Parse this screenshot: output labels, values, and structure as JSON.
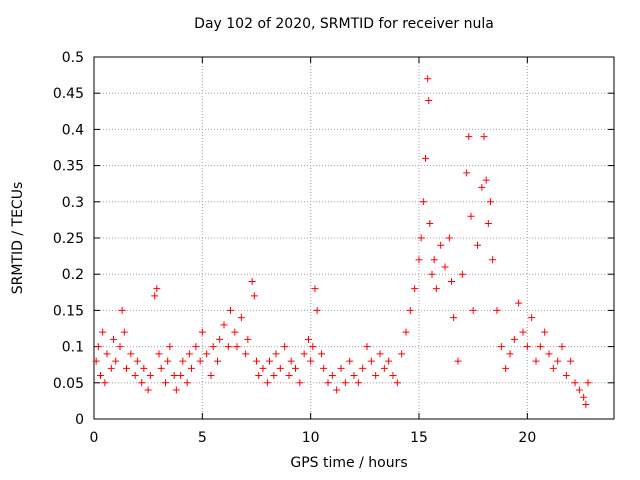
{
  "chart_data": {
    "type": "scatter",
    "title": "Day 102 of 2020, SRMTID for receiver nula",
    "xlabel": "GPS time / hours",
    "ylabel": "SRMTID / TECUs",
    "xlim": [
      0,
      24
    ],
    "ylim": [
      0,
      0.5
    ],
    "xticks": [
      0,
      5,
      10,
      15,
      20
    ],
    "yticks": [
      0,
      0.05,
      0.1,
      0.15,
      0.2,
      0.25,
      0.3,
      0.35,
      0.4,
      0.45,
      0.5
    ],
    "grid": true,
    "marker": "+",
    "color": "#ff0000",
    "series": [
      {
        "name": "SRMTID",
        "points": [
          [
            0.1,
            0.08
          ],
          [
            0.2,
            0.1
          ],
          [
            0.3,
            0.06
          ],
          [
            0.4,
            0.12
          ],
          [
            0.5,
            0.05
          ],
          [
            0.6,
            0.09
          ],
          [
            0.8,
            0.07
          ],
          [
            0.9,
            0.11
          ],
          [
            1.0,
            0.08
          ],
          [
            1.2,
            0.1
          ],
          [
            1.3,
            0.15
          ],
          [
            1.4,
            0.12
          ],
          [
            1.5,
            0.07
          ],
          [
            1.7,
            0.09
          ],
          [
            1.9,
            0.06
          ],
          [
            2.0,
            0.08
          ],
          [
            2.2,
            0.05
          ],
          [
            2.3,
            0.07
          ],
          [
            2.5,
            0.04
          ],
          [
            2.6,
            0.06
          ],
          [
            2.8,
            0.17
          ],
          [
            2.9,
            0.18
          ],
          [
            3.0,
            0.09
          ],
          [
            3.1,
            0.07
          ],
          [
            3.3,
            0.05
          ],
          [
            3.4,
            0.08
          ],
          [
            3.5,
            0.1
          ],
          [
            3.7,
            0.06
          ],
          [
            3.8,
            0.04
          ],
          [
            4.0,
            0.06
          ],
          [
            4.1,
            0.08
          ],
          [
            4.3,
            0.05
          ],
          [
            4.4,
            0.09
          ],
          [
            4.5,
            0.07
          ],
          [
            4.7,
            0.1
          ],
          [
            4.9,
            0.08
          ],
          [
            5.0,
            0.12
          ],
          [
            5.2,
            0.09
          ],
          [
            5.4,
            0.06
          ],
          [
            5.5,
            0.1
          ],
          [
            5.7,
            0.08
          ],
          [
            5.8,
            0.11
          ],
          [
            6.0,
            0.13
          ],
          [
            6.2,
            0.1
          ],
          [
            6.3,
            0.15
          ],
          [
            6.5,
            0.12
          ],
          [
            6.6,
            0.1
          ],
          [
            6.8,
            0.14
          ],
          [
            7.0,
            0.09
          ],
          [
            7.1,
            0.11
          ],
          [
            7.3,
            0.19
          ],
          [
            7.4,
            0.17
          ],
          [
            7.5,
            0.08
          ],
          [
            7.6,
            0.06
          ],
          [
            7.8,
            0.07
          ],
          [
            8.0,
            0.05
          ],
          [
            8.1,
            0.08
          ],
          [
            8.3,
            0.06
          ],
          [
            8.4,
            0.09
          ],
          [
            8.6,
            0.07
          ],
          [
            8.8,
            0.1
          ],
          [
            9.0,
            0.06
          ],
          [
            9.1,
            0.08
          ],
          [
            9.3,
            0.07
          ],
          [
            9.5,
            0.05
          ],
          [
            9.7,
            0.09
          ],
          [
            9.9,
            0.11
          ],
          [
            10.0,
            0.08
          ],
          [
            10.1,
            0.1
          ],
          [
            10.2,
            0.18
          ],
          [
            10.3,
            0.15
          ],
          [
            10.5,
            0.09
          ],
          [
            10.6,
            0.07
          ],
          [
            10.8,
            0.05
          ],
          [
            11.0,
            0.06
          ],
          [
            11.2,
            0.04
          ],
          [
            11.4,
            0.07
          ],
          [
            11.6,
            0.05
          ],
          [
            11.8,
            0.08
          ],
          [
            12.0,
            0.06
          ],
          [
            12.2,
            0.05
          ],
          [
            12.4,
            0.07
          ],
          [
            12.6,
            0.1
          ],
          [
            12.8,
            0.08
          ],
          [
            13.0,
            0.06
          ],
          [
            13.2,
            0.09
          ],
          [
            13.4,
            0.07
          ],
          [
            13.6,
            0.08
          ],
          [
            13.8,
            0.06
          ],
          [
            14.0,
            0.05
          ],
          [
            14.2,
            0.09
          ],
          [
            14.4,
            0.12
          ],
          [
            14.6,
            0.15
          ],
          [
            14.8,
            0.18
          ],
          [
            15.0,
            0.22
          ],
          [
            15.1,
            0.25
          ],
          [
            15.2,
            0.3
          ],
          [
            15.3,
            0.36
          ],
          [
            15.4,
            0.47
          ],
          [
            15.45,
            0.44
          ],
          [
            15.5,
            0.27
          ],
          [
            15.6,
            0.2
          ],
          [
            15.7,
            0.22
          ],
          [
            15.8,
            0.18
          ],
          [
            16.0,
            0.24
          ],
          [
            16.2,
            0.21
          ],
          [
            16.4,
            0.25
          ],
          [
            16.5,
            0.19
          ],
          [
            16.6,
            0.14
          ],
          [
            16.8,
            0.08
          ],
          [
            17.0,
            0.2
          ],
          [
            17.2,
            0.34
          ],
          [
            17.3,
            0.39
          ],
          [
            17.4,
            0.28
          ],
          [
            17.5,
            0.15
          ],
          [
            17.7,
            0.24
          ],
          [
            17.9,
            0.32
          ],
          [
            18.0,
            0.39
          ],
          [
            18.1,
            0.33
          ],
          [
            18.2,
            0.27
          ],
          [
            18.3,
            0.3
          ],
          [
            18.4,
            0.22
          ],
          [
            18.6,
            0.15
          ],
          [
            18.8,
            0.1
          ],
          [
            19.0,
            0.07
          ],
          [
            19.2,
            0.09
          ],
          [
            19.4,
            0.11
          ],
          [
            19.6,
            0.16
          ],
          [
            19.8,
            0.12
          ],
          [
            20.0,
            0.1
          ],
          [
            20.2,
            0.14
          ],
          [
            20.4,
            0.08
          ],
          [
            20.6,
            0.1
          ],
          [
            20.8,
            0.12
          ],
          [
            21.0,
            0.09
          ],
          [
            21.2,
            0.07
          ],
          [
            21.4,
            0.08
          ],
          [
            21.6,
            0.1
          ],
          [
            21.8,
            0.06
          ],
          [
            22.0,
            0.08
          ],
          [
            22.2,
            0.05
          ],
          [
            22.4,
            0.04
          ],
          [
            22.6,
            0.03
          ],
          [
            22.7,
            0.02
          ],
          [
            22.8,
            0.05
          ]
        ]
      }
    ]
  }
}
